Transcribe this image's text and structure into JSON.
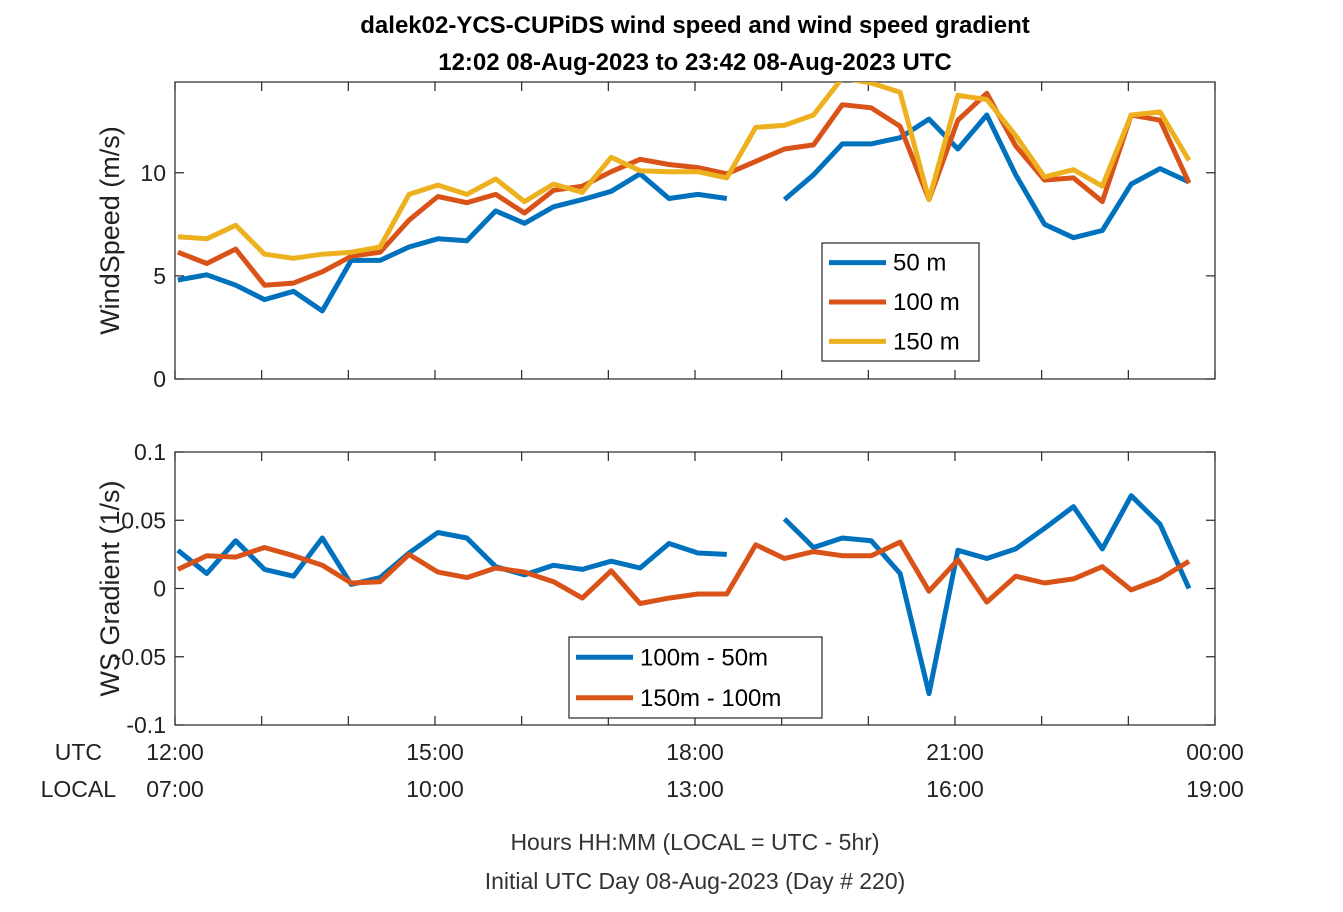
{
  "figure": {
    "title_line1": "dalek02-YCS-CUPiDS  wind speed and wind speed gradient",
    "title_line2": "12:02 08-Aug-2023 to 23:42 08-Aug-2023  UTC",
    "footer_line1": "Hours HH:MM  (LOCAL = UTC - 5hr)",
    "footer_line2": "Initial UTC Day 08-Aug-2023 (Day # 220)",
    "row_label_utc": "UTC",
    "row_label_local": "LOCAL",
    "colors": {
      "blue": "#0072BD",
      "orange": "#D95319",
      "yellow": "#EDB120",
      "axis": "#262626"
    }
  },
  "chart_data": [
    {
      "type": "line",
      "ylabel": "WindSpeed (m/s)",
      "xlim": [
        12.0,
        24.0
      ],
      "ylim": [
        0,
        14.4
      ],
      "yticks": [
        0,
        5,
        10
      ],
      "ytick_labels": [
        "0",
        "5",
        "10"
      ],
      "legend_position": "lower-right",
      "series": [
        {
          "name": "50 m",
          "color": "#0072BD",
          "x": [
            12.033,
            12.367,
            12.7,
            13.033,
            13.367,
            13.7,
            14.033,
            14.367,
            14.7,
            15.033,
            15.367,
            15.7,
            16.033,
            16.367,
            16.7,
            17.033,
            17.367,
            17.7,
            18.033,
            18.367,
            18.7,
            19.033,
            19.367,
            19.7,
            20.033,
            20.367,
            20.7,
            21.033,
            21.367,
            21.7,
            22.033,
            22.367,
            22.7,
            23.033,
            23.367,
            23.7
          ],
          "y": [
            4.8,
            5.05,
            4.55,
            3.85,
            4.25,
            3.3,
            5.75,
            5.75,
            6.4,
            6.8,
            6.7,
            8.15,
            7.55,
            8.35,
            8.7,
            9.1,
            9.95,
            8.75,
            8.95,
            8.75,
            null,
            8.7,
            9.9,
            11.4,
            11.4,
            11.7,
            12.6,
            11.15,
            12.8,
            9.9,
            7.5,
            6.85,
            7.2,
            9.45,
            10.2,
            9.55
          ]
        },
        {
          "name": "100 m",
          "color": "#D95319",
          "x": [
            12.033,
            12.367,
            12.7,
            13.033,
            13.367,
            13.7,
            14.033,
            14.367,
            14.7,
            15.033,
            15.367,
            15.7,
            16.033,
            16.367,
            16.7,
            17.033,
            17.367,
            17.7,
            18.033,
            18.367,
            18.7,
            19.033,
            19.367,
            19.7,
            20.033,
            20.367,
            20.7,
            21.033,
            21.367,
            21.7,
            22.033,
            22.367,
            22.7,
            23.033,
            23.367,
            23.7
          ],
          "y": [
            6.15,
            5.6,
            6.3,
            4.55,
            4.65,
            5.2,
            5.95,
            6.15,
            7.7,
            8.85,
            8.55,
            8.95,
            8.05,
            9.15,
            9.35,
            10.05,
            10.65,
            10.4,
            10.25,
            9.95,
            10.55,
            11.15,
            11.35,
            13.3,
            13.15,
            12.25,
            8.7,
            12.55,
            13.85,
            11.3,
            9.65,
            9.75,
            8.6,
            12.8,
            12.55,
            9.5
          ]
        },
        {
          "name": "150 m",
          "color": "#EDB120",
          "x": [
            12.033,
            12.367,
            12.7,
            13.033,
            13.367,
            13.7,
            14.033,
            14.367,
            14.7,
            15.033,
            15.367,
            15.7,
            16.033,
            16.367,
            16.7,
            17.033,
            17.367,
            17.7,
            18.033,
            18.367,
            18.7,
            19.033,
            19.367,
            19.7,
            20.033,
            20.367,
            20.7,
            21.033,
            21.367,
            21.7,
            22.033,
            22.367,
            22.7,
            23.033,
            23.367,
            23.7
          ],
          "y": [
            6.9,
            6.8,
            7.45,
            6.05,
            5.85,
            6.05,
            6.15,
            6.4,
            8.95,
            9.4,
            8.95,
            9.7,
            8.6,
            9.45,
            9.05,
            10.75,
            10.1,
            10.05,
            10.05,
            9.75,
            12.2,
            12.3,
            12.8,
            14.6,
            14.35,
            13.9,
            8.7,
            13.75,
            13.55,
            11.8,
            9.8,
            10.15,
            9.35,
            12.8,
            12.95,
            10.6
          ]
        }
      ]
    },
    {
      "type": "line",
      "ylabel": "WS Gradient (1/s)",
      "xlim": [
        12.0,
        24.0
      ],
      "ylim": [
        -0.1,
        0.1
      ],
      "yticks": [
        -0.1,
        -0.05,
        0,
        0.05,
        0.1
      ],
      "ytick_labels": [
        "-0.1",
        "-0.05",
        "0",
        "0.05",
        "0.1"
      ],
      "xticks": [
        12,
        15,
        18,
        21,
        24
      ],
      "xtick_labels_utc": [
        "12:00",
        "15:00",
        "18:00",
        "21:00",
        "00:00"
      ],
      "xtick_labels_local": [
        "07:00",
        "10:00",
        "13:00",
        "16:00",
        "19:00"
      ],
      "legend_position": "bottom-center",
      "series": [
        {
          "name": "100m - 50m",
          "color": "#0072BD",
          "x": [
            12.033,
            12.367,
            12.7,
            13.033,
            13.367,
            13.7,
            14.033,
            14.367,
            14.7,
            15.033,
            15.367,
            15.7,
            16.033,
            16.367,
            16.7,
            17.033,
            17.367,
            17.7,
            18.033,
            18.367,
            18.7,
            19.033,
            19.367,
            19.7,
            20.033,
            20.367,
            20.7,
            21.033,
            21.367,
            21.7,
            22.033,
            22.367,
            22.7,
            23.033,
            23.367,
            23.7
          ],
          "y": [
            0.028,
            0.011,
            0.035,
            0.014,
            0.009,
            0.037,
            0.003,
            0.008,
            0.026,
            0.041,
            0.037,
            0.016,
            0.01,
            0.017,
            0.014,
            0.02,
            0.015,
            0.033,
            0.026,
            0.025,
            null,
            0.051,
            0.03,
            0.037,
            0.035,
            0.011,
            -0.077,
            0.028,
            0.022,
            0.029,
            0.044,
            0.06,
            0.029,
            0.068,
            0.047,
            0.0
          ]
        },
        {
          "name": "150m - 100m",
          "color": "#D95319",
          "x": [
            12.033,
            12.367,
            12.7,
            13.033,
            13.367,
            13.7,
            14.033,
            14.367,
            14.7,
            15.033,
            15.367,
            15.7,
            16.033,
            16.367,
            16.7,
            17.033,
            17.367,
            17.7,
            18.033,
            18.367,
            18.7,
            19.033,
            19.367,
            19.7,
            20.033,
            20.367,
            20.7,
            21.033,
            21.367,
            21.7,
            22.033,
            22.367,
            22.7,
            23.033,
            23.367,
            23.7
          ],
          "y": [
            0.014,
            0.024,
            0.023,
            0.03,
            0.024,
            0.017,
            0.004,
            0.005,
            0.025,
            0.012,
            0.008,
            0.015,
            0.012,
            0.005,
            -0.007,
            0.013,
            -0.011,
            -0.007,
            -0.004,
            -0.004,
            0.032,
            0.022,
            0.027,
            0.024,
            0.024,
            0.034,
            -0.002,
            0.021,
            -0.01,
            0.009,
            0.004,
            0.007,
            0.016,
            -0.001,
            0.007,
            0.02
          ]
        }
      ]
    }
  ]
}
